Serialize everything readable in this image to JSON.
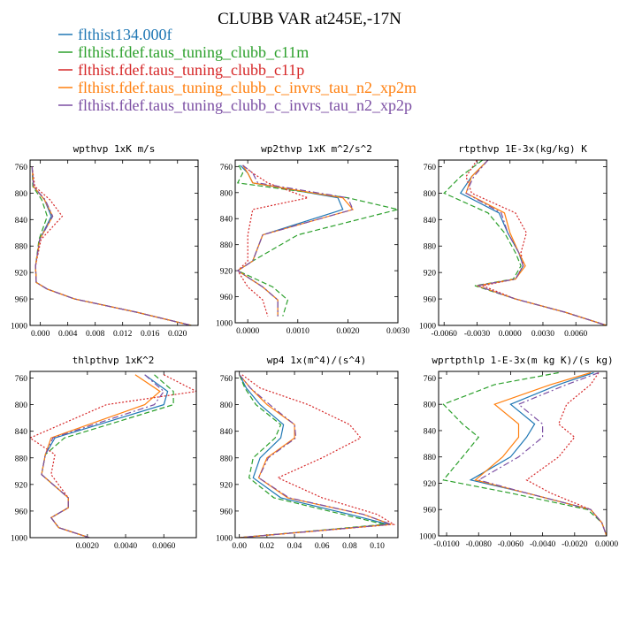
{
  "figure": {
    "title": "CLUBB VAR at245E,-17N"
  },
  "legend": [
    {
      "name": "flthist134.000f",
      "color": "#1f77b4",
      "dash": "solid"
    },
    {
      "name": "flthist.fdef.taus_tuning_clubb_c11m",
      "color": "#2ca02c",
      "dash": "dashed"
    },
    {
      "name": "flthist.fdef.taus_tuning_clubb_c11p",
      "color": "#d62728",
      "dash": "dotted"
    },
    {
      "name": "flthist.fdef.taus_tuning_clubb_c_invrs_tau_n2_xp2m",
      "color": "#ff7f0e",
      "dash": "solid"
    },
    {
      "name": "flthist.fdef.taus_tuning_clubb_c_invrs_tau_n2_xp2p",
      "color": "#7b4ea3",
      "dash": "dashdot"
    }
  ],
  "chart_data": [
    {
      "type": "line",
      "title": "wpthvp  1xK m/s",
      "xlim": [
        -0.0015,
        0.023
      ],
      "ylim": [
        1000,
        750
      ],
      "xticks": [
        0.0,
        0.004,
        0.008,
        0.012,
        0.016,
        0.02
      ],
      "xticklabels": [
        "0.000",
        "0.004",
        "0.008",
        "0.012",
        "0.016",
        "0.020"
      ],
      "yticks": [
        760,
        800,
        840,
        880,
        920,
        960,
        1000
      ],
      "y": [
        760,
        790,
        810,
        835,
        870,
        910,
        935,
        945,
        960,
        980,
        1000
      ],
      "series": [
        {
          "values": [
            -0.0012,
            -0.001,
            0.0006,
            0.0016,
            -0.0001,
            -0.0007,
            -0.0006,
            0.001,
            0.005,
            0.014,
            0.022
          ]
        },
        {
          "values": [
            -0.0012,
            -0.0011,
            0.0002,
            0.001,
            -0.0002,
            -0.0007,
            -0.0006,
            0.001,
            0.005,
            0.014,
            0.022
          ]
        },
        {
          "values": [
            -0.0012,
            -0.0008,
            0.0014,
            0.0032,
            0.0001,
            -0.0007,
            -0.0006,
            0.001,
            0.005,
            0.014,
            0.022
          ]
        },
        {
          "values": [
            -0.0012,
            -0.001,
            0.0006,
            0.0018,
            -0.0001,
            -0.0007,
            -0.0006,
            0.001,
            0.005,
            0.014,
            0.022
          ]
        },
        {
          "values": [
            -0.0012,
            -0.001,
            0.0007,
            0.0018,
            -0.0001,
            -0.0007,
            -0.0006,
            0.001,
            0.005,
            0.014,
            0.022
          ]
        }
      ]
    },
    {
      "type": "line",
      "title": "wp2thvp  1xK m^2/s^2",
      "xlim": [
        -0.00025,
        0.003
      ],
      "ylim": [
        1000,
        750
      ],
      "xticks": [
        0.0,
        0.001,
        0.002,
        0.003
      ],
      "xticklabels": [
        "0.0000",
        "0.0010",
        "0.0020",
        "0.0030"
      ],
      "yticks": [
        760,
        800,
        840,
        880,
        920,
        960,
        1000
      ],
      "y": [
        758,
        770,
        785,
        808,
        826,
        865,
        905,
        920,
        945,
        965,
        990
      ],
      "series": [
        {
          "values": [
            -0.00015,
            0.0,
            0.0001,
            0.0018,
            0.0019,
            0.0003,
            0.0001,
            -0.0002,
            0.0003,
            0.0006,
            0.0006
          ]
        },
        {
          "values": [
            -0.00018,
            -0.0001,
            -0.0002,
            0.002,
            0.003,
            0.001,
            0.0001,
            -0.0002,
            0.0005,
            0.0008,
            0.0007
          ]
        },
        {
          "values": [
            -0.0001,
            0.0001,
            0.0004,
            0.0012,
            0.0001,
            0.0,
            0.0,
            -0.0002,
            0.0,
            0.0003,
            0.0004
          ]
        },
        {
          "values": [
            -0.0001,
            0.0,
            0.0001,
            0.0019,
            0.0021,
            0.0003,
            0.0001,
            -0.0002,
            0.0003,
            0.0006,
            0.0006
          ]
        },
        {
          "values": [
            -0.0001,
            0.0001,
            0.0002,
            0.002,
            0.0021,
            0.0003,
            0.0001,
            -0.0002,
            0.0003,
            0.0006,
            0.0006
          ]
        }
      ]
    },
    {
      "type": "line",
      "title": "rtpthvp  1E-3x(kg/kg) K",
      "xlim": [
        -0.0065,
        0.0088
      ],
      "ylim": [
        1000,
        750
      ],
      "xticks": [
        -0.006,
        -0.003,
        0.0,
        0.003,
        0.006
      ],
      "xticklabels": [
        "-0.0060",
        "-0.0030",
        "0.0000",
        "0.0030",
        "0.0060"
      ],
      "yticks": [
        760,
        800,
        840,
        880,
        920,
        960,
        1000
      ],
      "y": [
        750,
        775,
        800,
        830,
        860,
        890,
        910,
        930,
        940,
        960,
        980,
        1000
      ],
      "series": [
        {
          "values": [
            -0.002,
            -0.0035,
            -0.0045,
            -0.001,
            -0.0002,
            0.0008,
            0.0012,
            0.0005,
            -0.003,
            0.0005,
            0.005,
            0.0088
          ]
        },
        {
          "values": [
            -0.0025,
            -0.0045,
            -0.006,
            -0.002,
            -0.0005,
            0.0005,
            0.001,
            0.0003,
            -0.0032,
            0.0005,
            0.005,
            0.0088
          ]
        },
        {
          "values": [
            -0.003,
            -0.004,
            -0.0035,
            0.0005,
            0.0015,
            0.001,
            0.0012,
            0.0005,
            -0.0025,
            0.0005,
            0.005,
            0.0088
          ]
        },
        {
          "values": [
            -0.002,
            -0.0035,
            -0.004,
            -0.0005,
            0.0,
            0.0008,
            0.0014,
            0.0005,
            -0.003,
            0.0005,
            0.005,
            0.0088
          ]
        },
        {
          "values": [
            -0.002,
            -0.0033,
            -0.004,
            -0.0008,
            -0.0002,
            0.0008,
            0.0012,
            0.0005,
            -0.003,
            0.0005,
            0.005,
            0.0088
          ]
        }
      ]
    },
    {
      "type": "line",
      "title": "thlpthvp  1xK^2",
      "xlim": [
        -0.001,
        0.0077
      ],
      "ylim": [
        1000,
        750
      ],
      "xticks": [
        0.002,
        0.004,
        0.006
      ],
      "xticklabels": [
        "0.0020",
        "0.0040",
        "0.0060"
      ],
      "yticks": [
        760,
        800,
        840,
        880,
        920,
        960,
        1000
      ],
      "y": [
        755,
        780,
        800,
        850,
        875,
        905,
        940,
        955,
        970,
        985,
        1000
      ],
      "series": [
        {
          "values": [
            0.005,
            0.0062,
            0.006,
            0.0003,
            -0.0002,
            -0.0004,
            0.001,
            0.001,
            0.0001,
            0.0005,
            0.0021
          ]
        },
        {
          "values": [
            0.0055,
            0.0065,
            0.0065,
            0.0008,
            -0.0002,
            -0.0004,
            0.001,
            0.001,
            0.0001,
            0.0005,
            0.0021
          ]
        },
        {
          "values": [
            0.006,
            0.0077,
            0.003,
            -0.001,
            0.0003,
            0.0001,
            0.001,
            0.001,
            0.0001,
            0.0005,
            0.0021
          ]
        },
        {
          "values": [
            0.0045,
            0.0058,
            0.005,
            0.0001,
            -0.0002,
            -0.0004,
            0.001,
            0.001,
            0.0001,
            0.0005,
            0.0021
          ]
        },
        {
          "values": [
            0.005,
            0.006,
            0.0055,
            0.0002,
            -0.0002,
            -0.0004,
            0.001,
            0.001,
            0.0001,
            0.0005,
            0.0021
          ]
        }
      ]
    },
    {
      "type": "line",
      "title": "wp4  1x(m^4)/(s^4)",
      "xlim": [
        -0.003,
        0.115
      ],
      "ylim": [
        1000,
        750
      ],
      "xticks": [
        0.0,
        0.02,
        0.04,
        0.06,
        0.08,
        0.1
      ],
      "xticklabels": [
        "0.00",
        "0.02",
        "0.04",
        "0.06",
        "0.08",
        "0.10"
      ],
      "yticks": [
        760,
        800,
        840,
        880,
        920,
        960,
        1000
      ],
      "y": [
        755,
        775,
        800,
        830,
        850,
        880,
        910,
        940,
        965,
        980,
        1000
      ],
      "series": [
        {
          "values": [
            0.0,
            0.005,
            0.015,
            0.032,
            0.03,
            0.015,
            0.01,
            0.03,
            0.08,
            0.108,
            0.0
          ]
        },
        {
          "values": [
            0.0,
            0.004,
            0.012,
            0.03,
            0.026,
            0.01,
            0.007,
            0.025,
            0.075,
            0.105,
            0.0
          ]
        },
        {
          "values": [
            0.002,
            0.015,
            0.05,
            0.08,
            0.088,
            0.06,
            0.028,
            0.06,
            0.1,
            0.112,
            0.0
          ]
        },
        {
          "values": [
            0.0,
            0.008,
            0.02,
            0.04,
            0.04,
            0.02,
            0.014,
            0.035,
            0.09,
            0.11,
            0.0
          ]
        },
        {
          "values": [
            0.0,
            0.008,
            0.022,
            0.04,
            0.041,
            0.021,
            0.014,
            0.036,
            0.09,
            0.11,
            0.0
          ]
        }
      ]
    },
    {
      "type": "line",
      "title": "wprtpthlp  1-E-3x(m kg K)/(s kg)",
      "xlim": [
        -0.0105,
        0.0
      ],
      "ylim": [
        1000,
        750
      ],
      "xticks": [
        -0.01,
        -0.008,
        -0.006,
        -0.004,
        -0.002,
        0.0
      ],
      "xticklabels": [
        "-0.0100",
        "-0.0080",
        "-0.0060",
        "-0.0040",
        "-0.0020",
        "0.0000"
      ],
      "yticks": [
        760,
        800,
        840,
        880,
        920,
        960,
        1000
      ],
      "y": [
        752,
        770,
        800,
        830,
        850,
        880,
        915,
        935,
        960,
        980,
        1000
      ],
      "series": [
        {
          "values": [
            -0.0008,
            -0.003,
            -0.006,
            -0.0045,
            -0.005,
            -0.006,
            -0.0085,
            -0.005,
            -0.001,
            -0.0003,
            0.0
          ]
        },
        {
          "values": [
            -0.003,
            -0.007,
            -0.0102,
            -0.009,
            -0.008,
            -0.009,
            -0.0102,
            -0.006,
            -0.0012,
            -0.0003,
            0.0
          ]
        },
        {
          "values": [
            -0.0005,
            -0.001,
            -0.0025,
            -0.003,
            -0.002,
            -0.003,
            -0.005,
            -0.0035,
            -0.001,
            -0.0003,
            0.0
          ]
        },
        {
          "values": [
            -0.001,
            -0.0035,
            -0.007,
            -0.0055,
            -0.0055,
            -0.0065,
            -0.0082,
            -0.005,
            -0.001,
            -0.0003,
            0.0
          ]
        },
        {
          "values": [
            -0.0005,
            -0.0025,
            -0.0055,
            -0.004,
            -0.004,
            -0.0055,
            -0.008,
            -0.005,
            -0.001,
            -0.0003,
            0.0
          ]
        }
      ]
    }
  ]
}
